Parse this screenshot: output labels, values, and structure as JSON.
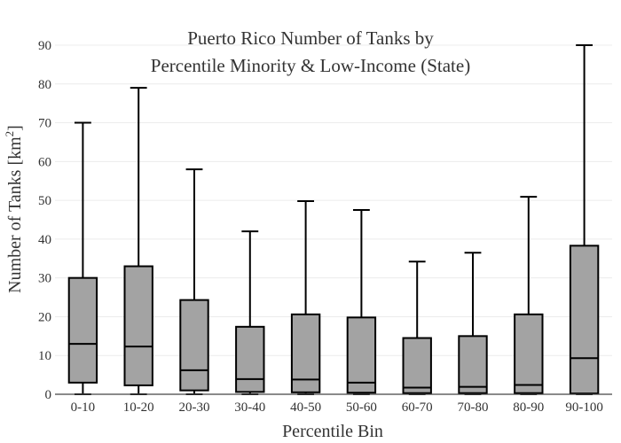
{
  "chart_data": {
    "type": "box",
    "title_line1": "Puerto Rico Number of Tanks by",
    "title_line2": "Percentile Minority & Low-Income (State)",
    "xlabel": "Percentile Bin",
    "ylabel_main": "Number of Tanks  [km",
    "ylabel_sup": "2",
    "ylabel_end": "]",
    "ylim": [
      0,
      90
    ],
    "yticks": [
      0,
      10,
      20,
      30,
      40,
      50,
      60,
      70,
      80,
      90
    ],
    "grid": true,
    "box_color": "#a3a3a3",
    "categories": [
      "0-10",
      "10-20",
      "20-30",
      "30-40",
      "40-50",
      "50-60",
      "60-70",
      "70-80",
      "80-90",
      "90-100"
    ],
    "boxes": [
      {
        "min": 0,
        "q1": 3.0,
        "median": 13.0,
        "q3": 30.0,
        "max": 70.0
      },
      {
        "min": 0,
        "q1": 2.3,
        "median": 12.3,
        "q3": 33.0,
        "max": 79.0
      },
      {
        "min": 0,
        "q1": 1.0,
        "median": 6.2,
        "q3": 24.3,
        "max": 58.0
      },
      {
        "min": 0,
        "q1": 0.6,
        "median": 3.9,
        "q3": 17.4,
        "max": 42.0
      },
      {
        "min": 0,
        "q1": 0.5,
        "median": 3.8,
        "q3": 20.6,
        "max": 49.8
      },
      {
        "min": 0,
        "q1": 0.4,
        "median": 3.0,
        "q3": 19.8,
        "max": 47.5
      },
      {
        "min": 0,
        "q1": 0.3,
        "median": 1.7,
        "q3": 14.5,
        "max": 34.2
      },
      {
        "min": 0,
        "q1": 0.3,
        "median": 1.9,
        "q3": 15.0,
        "max": 36.5
      },
      {
        "min": 0,
        "q1": 0.3,
        "median": 2.4,
        "q3": 20.6,
        "max": 50.9
      },
      {
        "min": 0,
        "q1": 0.2,
        "median": 9.3,
        "q3": 38.3,
        "max": 90.0
      }
    ]
  }
}
